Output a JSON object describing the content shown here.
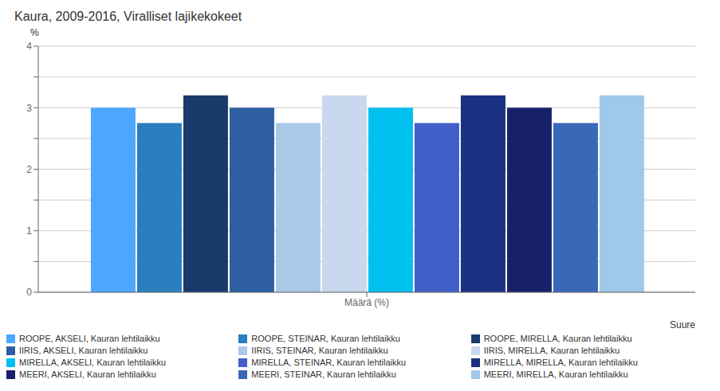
{
  "chart_data": {
    "type": "bar",
    "title": "Kaura, 2009-2016, Viralliset lajikekokeet",
    "y_label": "%",
    "categories": [
      "Määrä (%)"
    ],
    "series": [
      {
        "name": "ROOPE, AKSELI, Kauran lehtilaikku",
        "color": "#4da6ff",
        "values": [
          3.0
        ]
      },
      {
        "name": "ROOPE, STEINAR, Kauran lehtilaikku",
        "color": "#2a7fbf",
        "values": [
          2.75
        ]
      },
      {
        "name": "ROOPE, MIRELLA, Kauran lehtilaikku",
        "color": "#1a3a6b",
        "values": [
          3.2
        ]
      },
      {
        "name": "IIRIS, AKSELI, Kauran lehtilaikku",
        "color": "#2e5fa3",
        "values": [
          3.0
        ]
      },
      {
        "name": "IIRIS, STEINAR, Kauran lehtilaikku",
        "color": "#aac8e8",
        "values": [
          2.75
        ]
      },
      {
        "name": "IIRIS, MIRELLA, Kauran lehtilaikku",
        "color": "#c8d8ee",
        "values": [
          3.2
        ]
      },
      {
        "name": "MIRELLA, AKSELI, Kauran lehtilaikku",
        "color": "#00c0f0",
        "values": [
          3.0
        ]
      },
      {
        "name": "MIRELLA, STEINAR, Kauran lehtilaikku",
        "color": "#4060c8",
        "values": [
          2.75
        ]
      },
      {
        "name": "MIRELLA, MIRELLA, Kauran lehtilaikku",
        "color": "#1a3080",
        "values": [
          3.2
        ]
      },
      {
        "name": "MEERI, AKSELI, Kauran lehtilaikku",
        "color": "#18206a",
        "values": [
          3.0
        ]
      },
      {
        "name": "MEERI, STEINAR, Kauran lehtilaikku",
        "color": "#3a68b8",
        "values": [
          2.75
        ]
      },
      {
        "name": "MEERI, MIRELLA, Kauran lehtilaikku",
        "color": "#a0c8e8",
        "values": [
          3.2
        ]
      }
    ],
    "ylim": [
      0,
      4
    ],
    "yticks": [
      0,
      {
        "value": 0.5,
        "label": ""
      },
      1,
      {
        "value": 1.5,
        "label": ""
      },
      2,
      {
        "value": 2.5,
        "label": ""
      },
      3,
      {
        "value": 3.5,
        "label": ""
      },
      4
    ],
    "grid": true,
    "legend": "bottom",
    "legend_title": "Suure"
  }
}
